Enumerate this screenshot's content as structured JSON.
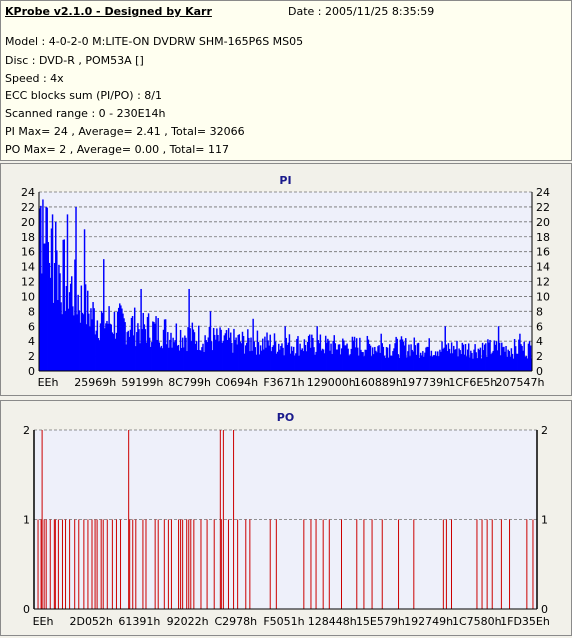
{
  "header": {
    "title": "KProbe v2.1.0 - Designed by Karr",
    "date": "Date : 2005/11/25 8:35:59",
    "lines": [
      "Model : 4-0-2-0 M:LITE-ON DVDRW SHM-165P6S MS05",
      "Disc : DVD-R , POM53A []",
      "Speed : 4x",
      "ECC blocks sum (PI/PO) : 8/1",
      "Scanned range : 0 - 230E14h",
      "PI Max= 24 , Average= 2.41 , Total= 32066",
      "PO Max= 2 , Average= 0.00 , Total= 117"
    ]
  },
  "chart_data": [
    {
      "type": "bar",
      "title": "PI",
      "ylim": [
        0,
        24
      ],
      "yticks": [
        0,
        2,
        4,
        6,
        8,
        10,
        12,
        14,
        16,
        18,
        20,
        22,
        24
      ],
      "xticklabels": [
        "EEh",
        "25969h",
        "59199h",
        "8C799h",
        "C0694h",
        "F3671h",
        "129000h",
        "160889h",
        "197739h",
        "1CF6E5h",
        "207547h"
      ],
      "grid": true,
      "color": "#0000ff",
      "envelope": [
        [
          0,
          22
        ],
        [
          2,
          20
        ],
        [
          5,
          17
        ],
        [
          8,
          16
        ],
        [
          12,
          15
        ],
        [
          16,
          14
        ],
        [
          20,
          13
        ],
        [
          25,
          12
        ],
        [
          30,
          11
        ],
        [
          35,
          10
        ],
        [
          40,
          9
        ],
        [
          45,
          8
        ],
        [
          55,
          7
        ],
        [
          70,
          6.5
        ],
        [
          90,
          6
        ],
        [
          110,
          5.5
        ],
        [
          130,
          5
        ],
        [
          150,
          4.5
        ],
        [
          175,
          4
        ],
        [
          210,
          3.8
        ],
        [
          250,
          3.5
        ],
        [
          300,
          3.3
        ],
        [
          350,
          3.2
        ],
        [
          400,
          3
        ],
        [
          440,
          3
        ],
        [
          460,
          3
        ]
      ],
      "spikes": [
        [
          3,
          23
        ],
        [
          6,
          22
        ],
        [
          12,
          21
        ],
        [
          15,
          20
        ],
        [
          26,
          21
        ],
        [
          34,
          22
        ],
        [
          42,
          19
        ],
        [
          60,
          15
        ],
        [
          95,
          11
        ],
        [
          140,
          11
        ],
        [
          160,
          8
        ],
        [
          200,
          7
        ],
        [
          230,
          6
        ],
        [
          260,
          6
        ],
        [
          320,
          5
        ],
        [
          380,
          6
        ],
        [
          430,
          6
        ],
        [
          450,
          5
        ]
      ]
    },
    {
      "type": "bar",
      "title": "PO",
      "ylim": [
        0,
        2
      ],
      "yticks": [
        0,
        1,
        2
      ],
      "xticklabels": [
        "EEh",
        "2D052h",
        "61391h",
        "92022h",
        "C2978h",
        "F5051h",
        "128448h",
        "15E579h",
        "192749h",
        "1C7580h",
        "1FD35Eh"
      ],
      "grid": true,
      "color": "#cc0000",
      "ones": [
        2,
        5,
        8,
        10,
        14,
        18,
        19,
        22,
        26,
        29,
        33,
        38,
        42,
        47,
        51,
        55,
        58,
        60,
        64,
        66,
        70,
        75,
        79,
        83,
        92,
        95,
        98,
        105,
        108,
        117,
        120,
        126,
        130,
        133,
        140,
        142,
        144,
        148,
        150,
        152,
        155,
        162,
        168,
        175,
        182,
        189,
        198,
        206,
        210,
        230,
        236,
        263,
        270,
        275,
        282,
        288,
        300,
        315,
        322,
        330,
        340,
        356,
        371,
        400,
        403,
        408,
        433,
        438,
        443,
        448,
        457,
        465,
        482,
        488
      ],
      "twos": [
        6,
        91,
        181,
        184,
        194
      ]
    }
  ]
}
